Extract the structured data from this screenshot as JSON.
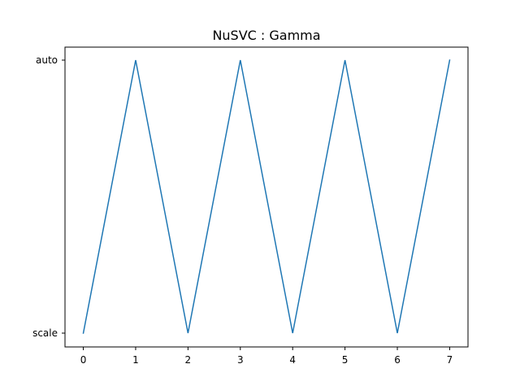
{
  "chart_data": {
    "type": "line",
    "title": "NuSVC : Gamma",
    "xlabel": "",
    "ylabel": "",
    "x": [
      0,
      1,
      2,
      3,
      4,
      5,
      6,
      7
    ],
    "y_categories": [
      "scale",
      "auto"
    ],
    "series": [
      {
        "values": [
          "scale",
          "auto",
          "scale",
          "auto",
          "scale",
          "auto",
          "scale",
          "auto"
        ],
        "color": "#1f77b4"
      }
    ],
    "xlim": [
      -0.35,
      7.35
    ],
    "x_ticks": [
      "0",
      "1",
      "2",
      "3",
      "4",
      "5",
      "6",
      "7"
    ],
    "y_ticks": [
      "scale",
      "auto"
    ],
    "grid": false,
    "legend": "none"
  }
}
